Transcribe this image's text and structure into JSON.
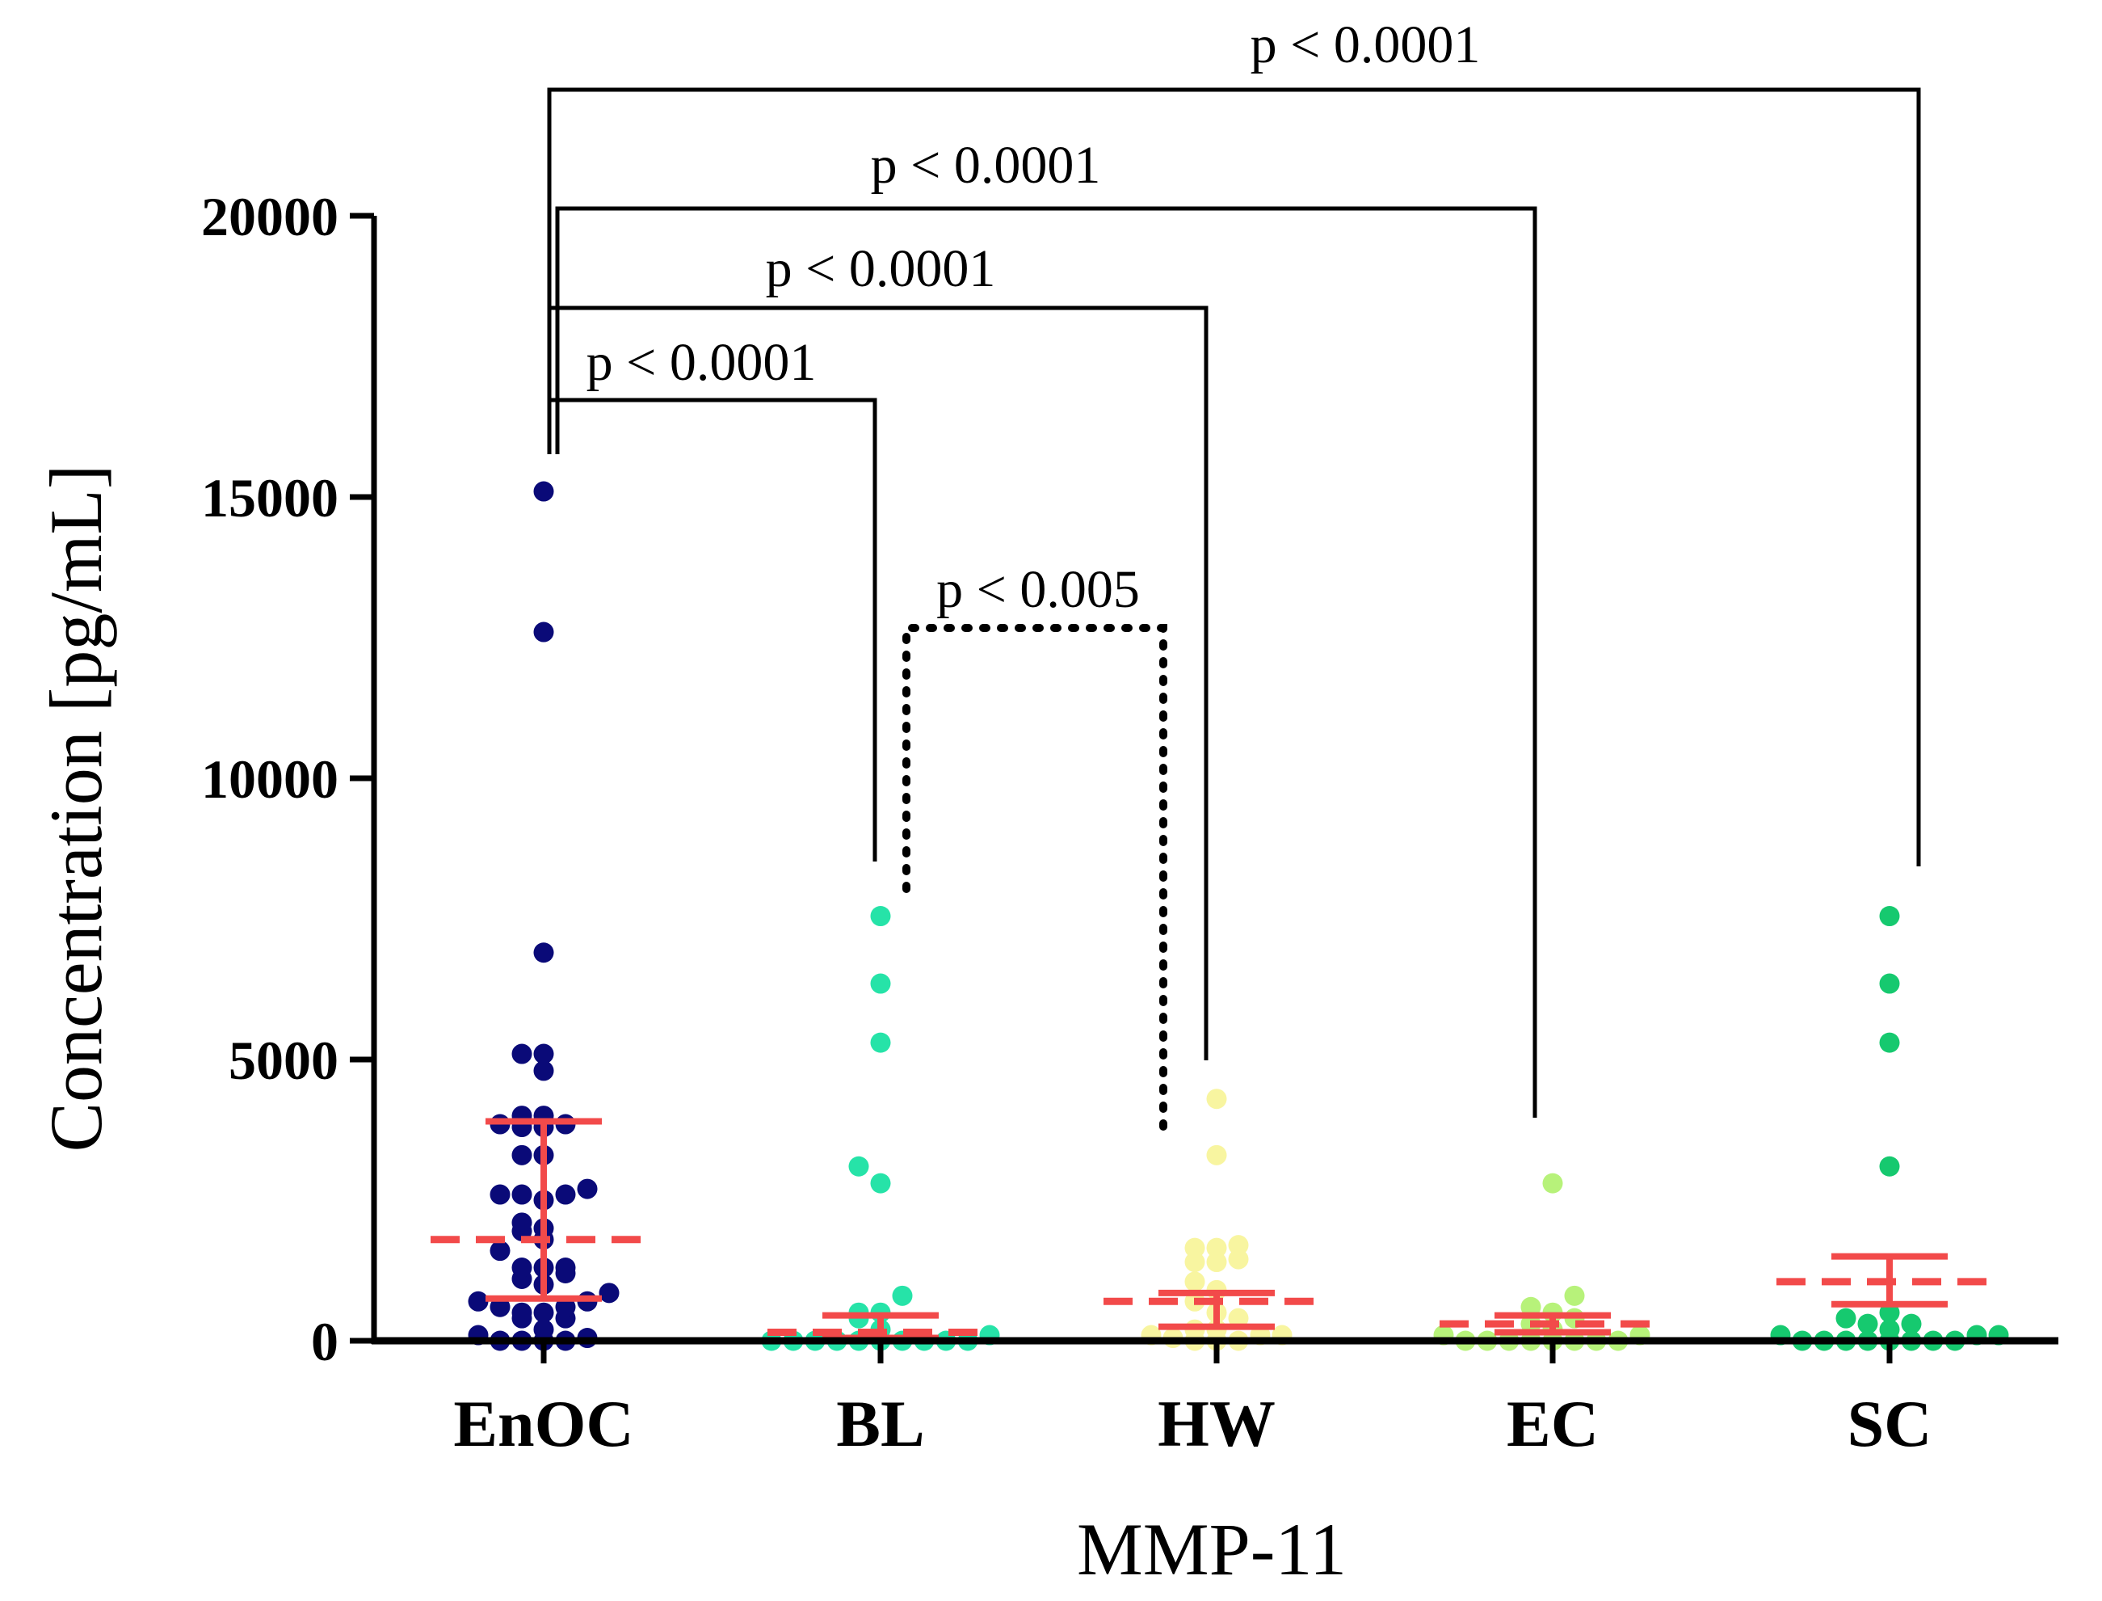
{
  "chart_data": {
    "type": "scatter",
    "title": "",
    "xlabel": "MMP-11",
    "ylabel": "Concentration [pg/mL]",
    "ylim": [
      0,
      20000
    ],
    "yticks": [
      0,
      5000,
      10000,
      15000,
      20000
    ],
    "yticklabels": [
      "0",
      "5000",
      "10000",
      "15000",
      "20000"
    ],
    "categories": [
      "EnOC",
      "BL",
      "HW",
      "EC",
      "SC"
    ],
    "series": [
      {
        "name": "EnOC",
        "color": "#0a0a78",
        "values": [
          15100,
          12600,
          6900,
          5100,
          5100,
          4800,
          4000,
          4000,
          3850,
          3850,
          3800,
          3800,
          3300,
          3300,
          2700,
          2600,
          2600,
          2600,
          2500,
          2100,
          2000,
          1950,
          1800,
          1600,
          1300,
          1300,
          1300,
          1200,
          1100,
          1000,
          850,
          700,
          700,
          600,
          600,
          500,
          500,
          400,
          400,
          200,
          100,
          50,
          0,
          0,
          0,
          0
        ],
        "median": 1800,
        "q1": 750,
        "q3": 3900
      },
      {
        "name": "BL",
        "color": "#26e3a8",
        "values": [
          7550,
          6350,
          5300,
          3100,
          2800,
          800,
          500,
          500,
          400,
          200,
          100,
          0,
          0,
          0,
          0,
          0,
          0,
          0,
          0,
          0,
          0
        ],
        "median": 150,
        "q1": 50,
        "q3": 450
      },
      {
        "name": "HW",
        "color": "#f8f5a0",
        "values": [
          4300,
          3300,
          1700,
          1650,
          1650,
          1450,
          1400,
          1400,
          1050,
          900,
          700,
          500,
          400,
          200,
          200,
          100,
          100,
          100,
          50,
          0,
          0,
          0
        ],
        "median": 700,
        "q1": 250,
        "q3": 850
      },
      {
        "name": "EC",
        "color": "#b7f27a",
        "values": [
          2800,
          800,
          600,
          500,
          400,
          300,
          200,
          100,
          100,
          0,
          0,
          0,
          0,
          0,
          0,
          0,
          0
        ],
        "median": 300,
        "q1": 150,
        "q3": 450
      },
      {
        "name": "SC",
        "color": "#16c96f",
        "values": [
          7550,
          6350,
          5300,
          3100,
          500,
          400,
          300,
          300,
          200,
          100,
          100,
          100,
          0,
          0,
          0,
          0,
          0,
          0,
          0,
          0
        ],
        "median": 1050,
        "q1": 650,
        "q3": 1500
      }
    ],
    "annotations": [
      {
        "from": "EnOC",
        "to": "SC",
        "text": "p < 0.0001",
        "style": "solid"
      },
      {
        "from": "EnOC",
        "to": "EC",
        "text": "p < 0.0001",
        "style": "solid"
      },
      {
        "from": "EnOC",
        "to": "HW",
        "text": "p < 0.0001",
        "style": "solid"
      },
      {
        "from": "EnOC",
        "to": "BL",
        "text": "p < 0.0001",
        "style": "solid"
      },
      {
        "from": "BL",
        "to": "HW",
        "text": "p < 0.005",
        "style": "dotted"
      }
    ],
    "summary_color": "#f24a4a"
  }
}
